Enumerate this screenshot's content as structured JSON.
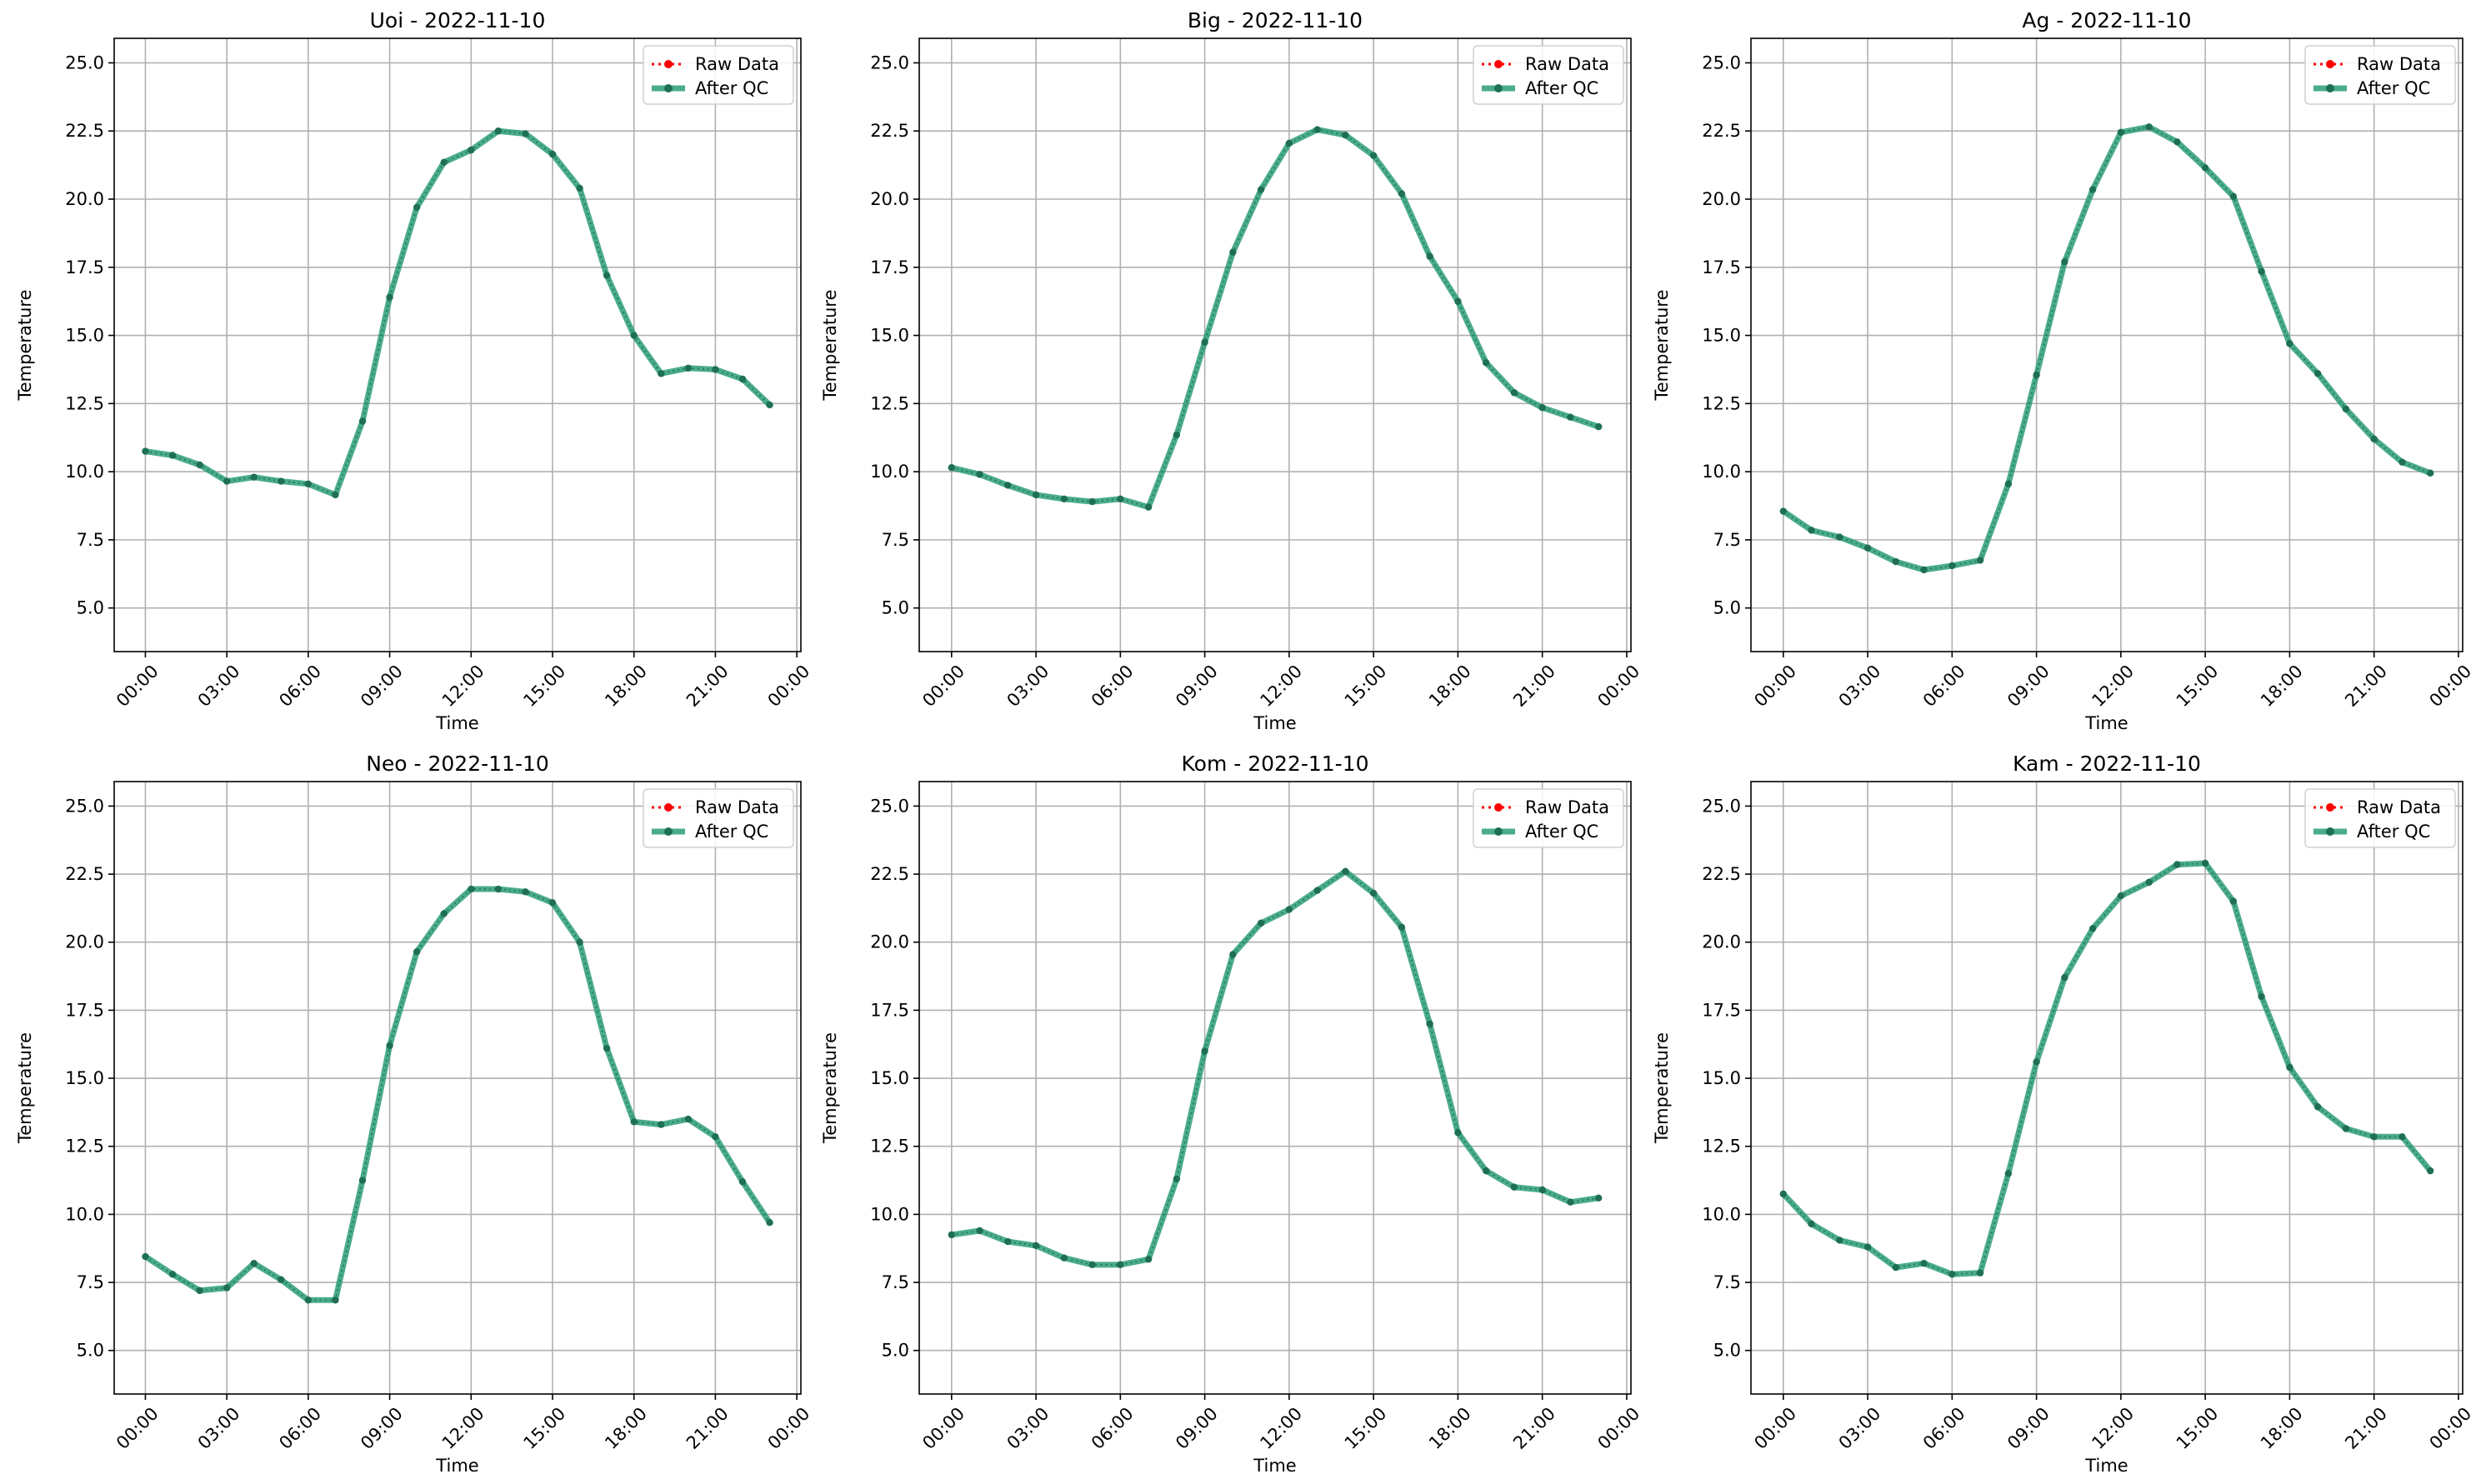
{
  "colors": {
    "raw": "#ff0000",
    "qc": "#2a9d78",
    "qc_marker": "#1f6f57",
    "grid": "#b0b0b0",
    "axis": "#000000"
  },
  "chart_data": [
    {
      "type": "line",
      "title": "Uoi - 2022-11-10",
      "xlabel": "Time",
      "ylabel": "Temperature",
      "x": [
        "00:00",
        "01:00",
        "02:00",
        "03:00",
        "04:00",
        "05:00",
        "06:00",
        "07:00",
        "08:00",
        "09:00",
        "10:00",
        "11:00",
        "12:00",
        "13:00",
        "14:00",
        "15:00",
        "16:00",
        "17:00",
        "18:00",
        "19:00",
        "20:00",
        "21:00",
        "22:00",
        "23:00"
      ],
      "x_ticks": [
        "00:00",
        "03:00",
        "06:00",
        "09:00",
        "12:00",
        "15:00",
        "18:00",
        "21:00",
        "00:00"
      ],
      "y_ticks": [
        "5.0",
        "7.5",
        "10.0",
        "12.5",
        "15.0",
        "17.5",
        "20.0",
        "22.5",
        "25.0"
      ],
      "ylim": [
        3.4,
        25.9
      ],
      "grid": true,
      "legend_position": "top-right",
      "series": [
        {
          "name": "Raw Data",
          "values": [
            10.75,
            10.6,
            10.25,
            9.65,
            9.8,
            9.65,
            9.55,
            9.15,
            11.85,
            16.4,
            19.7,
            21.35,
            21.8,
            22.5,
            22.4,
            21.65,
            20.4,
            17.2,
            15.0,
            13.6,
            13.8,
            13.75,
            13.4,
            12.45
          ]
        },
        {
          "name": "After QC",
          "values": [
            10.75,
            10.6,
            10.25,
            9.65,
            9.8,
            9.65,
            9.55,
            9.15,
            11.85,
            16.4,
            19.7,
            21.35,
            21.8,
            22.5,
            22.4,
            21.65,
            20.4,
            17.2,
            15.0,
            13.6,
            13.8,
            13.75,
            13.4,
            12.45
          ]
        }
      ]
    },
    {
      "type": "line",
      "title": "Big - 2022-11-10",
      "xlabel": "Time",
      "ylabel": "Temperature",
      "x": [
        "00:00",
        "01:00",
        "02:00",
        "03:00",
        "04:00",
        "05:00",
        "06:00",
        "07:00",
        "08:00",
        "09:00",
        "10:00",
        "11:00",
        "12:00",
        "13:00",
        "14:00",
        "15:00",
        "16:00",
        "17:00",
        "18:00",
        "19:00",
        "20:00",
        "21:00",
        "22:00",
        "23:00"
      ],
      "x_ticks": [
        "00:00",
        "03:00",
        "06:00",
        "09:00",
        "12:00",
        "15:00",
        "18:00",
        "21:00",
        "00:00"
      ],
      "y_ticks": [
        "5.0",
        "7.5",
        "10.0",
        "12.5",
        "15.0",
        "17.5",
        "20.0",
        "22.5",
        "25.0"
      ],
      "ylim": [
        3.4,
        25.9
      ],
      "grid": true,
      "legend_position": "top-right",
      "series": [
        {
          "name": "Raw Data",
          "values": [
            10.15,
            9.9,
            9.5,
            9.15,
            9.0,
            8.9,
            9.0,
            8.7,
            11.35,
            14.75,
            18.05,
            20.35,
            22.05,
            22.55,
            22.35,
            21.6,
            20.2,
            17.9,
            16.25,
            14.0,
            12.9,
            12.35,
            12.0,
            11.65
          ]
        },
        {
          "name": "After QC",
          "values": [
            10.15,
            9.9,
            9.5,
            9.15,
            9.0,
            8.9,
            9.0,
            8.7,
            11.35,
            14.75,
            18.05,
            20.35,
            22.05,
            22.55,
            22.35,
            21.6,
            20.2,
            17.9,
            16.25,
            14.0,
            12.9,
            12.35,
            12.0,
            11.65
          ]
        }
      ]
    },
    {
      "type": "line",
      "title": "Ag - 2022-11-10",
      "xlabel": "Time",
      "ylabel": "Temperature",
      "x": [
        "00:00",
        "01:00",
        "02:00",
        "03:00",
        "04:00",
        "05:00",
        "06:00",
        "07:00",
        "08:00",
        "09:00",
        "10:00",
        "11:00",
        "12:00",
        "13:00",
        "14:00",
        "15:00",
        "16:00",
        "17:00",
        "18:00",
        "19:00",
        "20:00",
        "21:00",
        "22:00",
        "23:00"
      ],
      "x_ticks": [
        "00:00",
        "03:00",
        "06:00",
        "09:00",
        "12:00",
        "15:00",
        "18:00",
        "21:00",
        "00:00"
      ],
      "y_ticks": [
        "5.0",
        "7.5",
        "10.0",
        "12.5",
        "15.0",
        "17.5",
        "20.0",
        "22.5",
        "25.0"
      ],
      "ylim": [
        3.4,
        25.9
      ],
      "grid": true,
      "legend_position": "top-right",
      "series": [
        {
          "name": "Raw Data",
          "values": [
            8.55,
            7.85,
            7.6,
            7.2,
            6.7,
            6.4,
            6.55,
            6.75,
            9.55,
            13.55,
            17.7,
            20.35,
            22.45,
            22.65,
            22.1,
            21.15,
            20.1,
            17.35,
            14.7,
            13.6,
            12.3,
            11.2,
            10.35,
            9.95
          ]
        },
        {
          "name": "After QC",
          "values": [
            8.55,
            7.85,
            7.6,
            7.2,
            6.7,
            6.4,
            6.55,
            6.75,
            9.55,
            13.55,
            17.7,
            20.35,
            22.45,
            22.65,
            22.1,
            21.15,
            20.1,
            17.35,
            14.7,
            13.6,
            12.3,
            11.2,
            10.35,
            9.95
          ]
        }
      ]
    },
    {
      "type": "line",
      "title": "Neo - 2022-11-10",
      "xlabel": "Time",
      "ylabel": "Temperature",
      "x": [
        "00:00",
        "01:00",
        "02:00",
        "03:00",
        "04:00",
        "05:00",
        "06:00",
        "07:00",
        "08:00",
        "09:00",
        "10:00",
        "11:00",
        "12:00",
        "13:00",
        "14:00",
        "15:00",
        "16:00",
        "17:00",
        "18:00",
        "19:00",
        "20:00",
        "21:00",
        "22:00",
        "23:00"
      ],
      "x_ticks": [
        "00:00",
        "03:00",
        "06:00",
        "09:00",
        "12:00",
        "15:00",
        "18:00",
        "21:00",
        "00:00"
      ],
      "y_ticks": [
        "5.0",
        "7.5",
        "10.0",
        "12.5",
        "15.0",
        "17.5",
        "20.0",
        "22.5",
        "25.0"
      ],
      "ylim": [
        3.4,
        25.9
      ],
      "grid": true,
      "legend_position": "top-right",
      "series": [
        {
          "name": "Raw Data",
          "values": [
            8.45,
            7.8,
            7.2,
            7.3,
            8.2,
            7.6,
            6.85,
            6.85,
            11.25,
            16.2,
            19.65,
            21.05,
            21.95,
            21.95,
            21.85,
            21.45,
            20.0,
            16.1,
            13.4,
            13.3,
            13.5,
            12.85,
            11.2,
            9.7
          ]
        },
        {
          "name": "After QC",
          "values": [
            8.45,
            7.8,
            7.2,
            7.3,
            8.2,
            7.6,
            6.85,
            6.85,
            11.25,
            16.2,
            19.65,
            21.05,
            21.95,
            21.95,
            21.85,
            21.45,
            20.0,
            16.1,
            13.4,
            13.3,
            13.5,
            12.85,
            11.2,
            9.7
          ]
        }
      ]
    },
    {
      "type": "line",
      "title": "Kom - 2022-11-10",
      "xlabel": "Time",
      "ylabel": "Temperature",
      "x": [
        "00:00",
        "01:00",
        "02:00",
        "03:00",
        "04:00",
        "05:00",
        "06:00",
        "07:00",
        "08:00",
        "09:00",
        "10:00",
        "11:00",
        "12:00",
        "13:00",
        "14:00",
        "15:00",
        "16:00",
        "17:00",
        "18:00",
        "19:00",
        "20:00",
        "21:00",
        "22:00",
        "23:00"
      ],
      "x_ticks": [
        "00:00",
        "03:00",
        "06:00",
        "09:00",
        "12:00",
        "15:00",
        "18:00",
        "21:00",
        "00:00"
      ],
      "y_ticks": [
        "5.0",
        "7.5",
        "10.0",
        "12.5",
        "15.0",
        "17.5",
        "20.0",
        "22.5",
        "25.0"
      ],
      "ylim": [
        3.4,
        25.9
      ],
      "grid": true,
      "legend_position": "top-right",
      "series": [
        {
          "name": "Raw Data",
          "values": [
            9.25,
            9.4,
            9.0,
            8.85,
            8.4,
            8.15,
            8.15,
            8.35,
            11.3,
            16.0,
            19.55,
            20.7,
            21.2,
            21.9,
            22.6,
            21.8,
            20.55,
            17.0,
            13.0,
            11.6,
            11.0,
            10.9,
            10.45,
            10.6
          ]
        },
        {
          "name": "After QC",
          "values": [
            9.25,
            9.4,
            9.0,
            8.85,
            8.4,
            8.15,
            8.15,
            8.35,
            11.3,
            16.0,
            19.55,
            20.7,
            21.2,
            21.9,
            22.6,
            21.8,
            20.55,
            17.0,
            13.0,
            11.6,
            11.0,
            10.9,
            10.45,
            10.6
          ]
        }
      ]
    },
    {
      "type": "line",
      "title": "Kam - 2022-11-10",
      "xlabel": "Time",
      "ylabel": "Temperature",
      "x": [
        "00:00",
        "01:00",
        "02:00",
        "03:00",
        "04:00",
        "05:00",
        "06:00",
        "07:00",
        "08:00",
        "09:00",
        "10:00",
        "11:00",
        "12:00",
        "13:00",
        "14:00",
        "15:00",
        "16:00",
        "17:00",
        "18:00",
        "19:00",
        "20:00",
        "21:00",
        "22:00",
        "23:00"
      ],
      "x_ticks": [
        "00:00",
        "03:00",
        "06:00",
        "09:00",
        "12:00",
        "15:00",
        "18:00",
        "21:00",
        "00:00"
      ],
      "y_ticks": [
        "5.0",
        "7.5",
        "10.0",
        "12.5",
        "15.0",
        "17.5",
        "20.0",
        "22.5",
        "25.0"
      ],
      "ylim": [
        3.4,
        25.9
      ],
      "grid": true,
      "legend_position": "top-right",
      "series": [
        {
          "name": "Raw Data",
          "values": [
            10.75,
            9.65,
            9.05,
            8.8,
            8.05,
            8.2,
            7.8,
            7.85,
            11.5,
            15.6,
            18.7,
            20.5,
            21.7,
            22.2,
            22.85,
            22.9,
            21.5,
            18.0,
            15.4,
            13.95,
            13.15,
            12.85,
            12.85,
            11.6
          ]
        },
        {
          "name": "After QC",
          "values": [
            10.75,
            9.65,
            9.05,
            8.8,
            8.05,
            8.2,
            7.8,
            7.85,
            11.5,
            15.6,
            18.7,
            20.5,
            21.7,
            22.2,
            22.85,
            22.9,
            21.5,
            18.0,
            15.4,
            13.95,
            13.15,
            12.85,
            12.85,
            11.6
          ]
        }
      ]
    }
  ]
}
